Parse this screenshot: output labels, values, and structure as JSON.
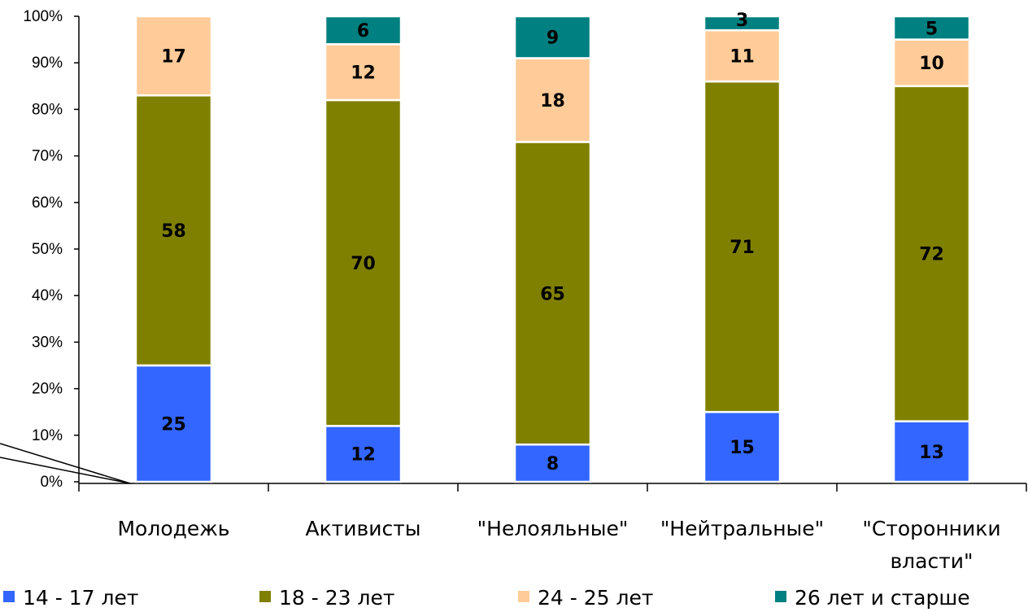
{
  "chart_data": {
    "type": "bar",
    "stacked": true,
    "percent_stacked": true,
    "categories": [
      [
        "Молодежь"
      ],
      [
        "Активисты"
      ],
      [
        "\"Нелояльные\""
      ],
      [
        "\"Нейтральные\""
      ],
      [
        "\"Сторонники",
        "власти\""
      ]
    ],
    "series": [
      {
        "name": "14 - 17 лет",
        "color": "#3366FF",
        "values": [
          25,
          12,
          8,
          15,
          13
        ]
      },
      {
        "name": "18 - 23 лет",
        "color": "#808000",
        "values": [
          58,
          70,
          65,
          71,
          72
        ]
      },
      {
        "name": "24 - 25 лет",
        "color": "#FFCC99",
        "values": [
          17,
          12,
          18,
          11,
          10
        ]
      },
      {
        "name": "26 лет и старше",
        "color": "#008080",
        "values": [
          0,
          6,
          9,
          3,
          5
        ]
      }
    ],
    "ylim": [
      0,
      100
    ],
    "yticks": [
      "0%",
      "10%",
      "20%",
      "30%",
      "40%",
      "50%",
      "60%",
      "70%",
      "80%",
      "90%",
      "100%"
    ],
    "grid": false,
    "legend": "bottom"
  }
}
